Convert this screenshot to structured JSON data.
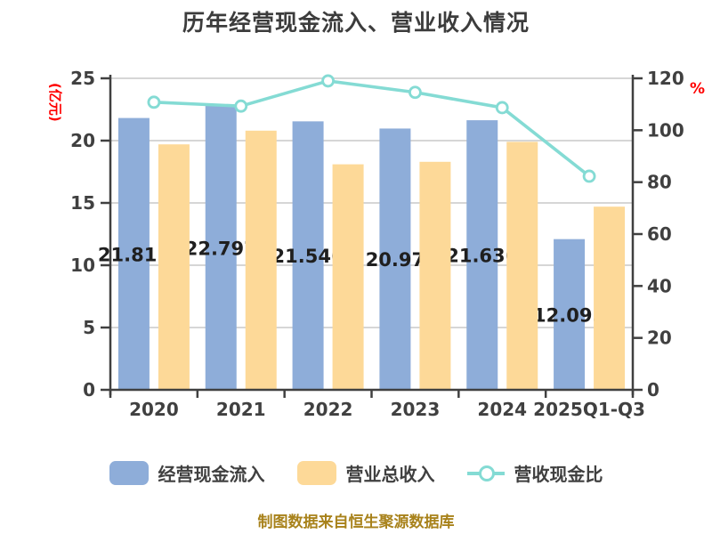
{
  "chart_data": {
    "type": "combo-bar-line",
    "title": "历年经营现金流入、营业收入情况",
    "caption": "制图数据来自恒生聚源数据库",
    "categories": [
      "2020",
      "2021",
      "2022",
      "2023",
      "2024",
      "2025Q1-Q3"
    ],
    "series": [
      {
        "name": "经营现金流入",
        "kind": "bar",
        "axis": "left",
        "color": "#8eadd9",
        "values": [
          21.815,
          22.797,
          21.546,
          20.97,
          21.636,
          12.095
        ],
        "labels": [
          "21.815",
          "22.797",
          "21.546",
          "20.97",
          "21.636",
          "12.095"
        ]
      },
      {
        "name": "营业总收入",
        "kind": "bar",
        "axis": "left",
        "color": "#fdd998",
        "values": [
          19.7,
          20.8,
          18.1,
          18.3,
          19.9,
          14.7
        ]
      },
      {
        "name": "营收现金比",
        "kind": "line",
        "axis": "right",
        "color": "#84dbd4",
        "marker_fill": "#ffffff",
        "values": [
          110.8,
          109.3,
          119.0,
          114.6,
          108.7,
          82.3
        ]
      }
    ],
    "left_axis": {
      "unit": "(亿元)",
      "unit_color": "#ff0000",
      "ticks": [
        0,
        5,
        10,
        15,
        20,
        25
      ],
      "range": [
        0,
        25
      ]
    },
    "right_axis": {
      "unit": "%",
      "unit_color": "#ff0000",
      "ticks": [
        0,
        20,
        40,
        60,
        80,
        100,
        120
      ],
      "range": [
        0,
        120
      ]
    },
    "grid": {
      "show": true,
      "color": "#d6d6d6"
    },
    "axis_color": "#404040",
    "bar_label_color": "#1f1f1f",
    "legend_position": "bottom"
  }
}
